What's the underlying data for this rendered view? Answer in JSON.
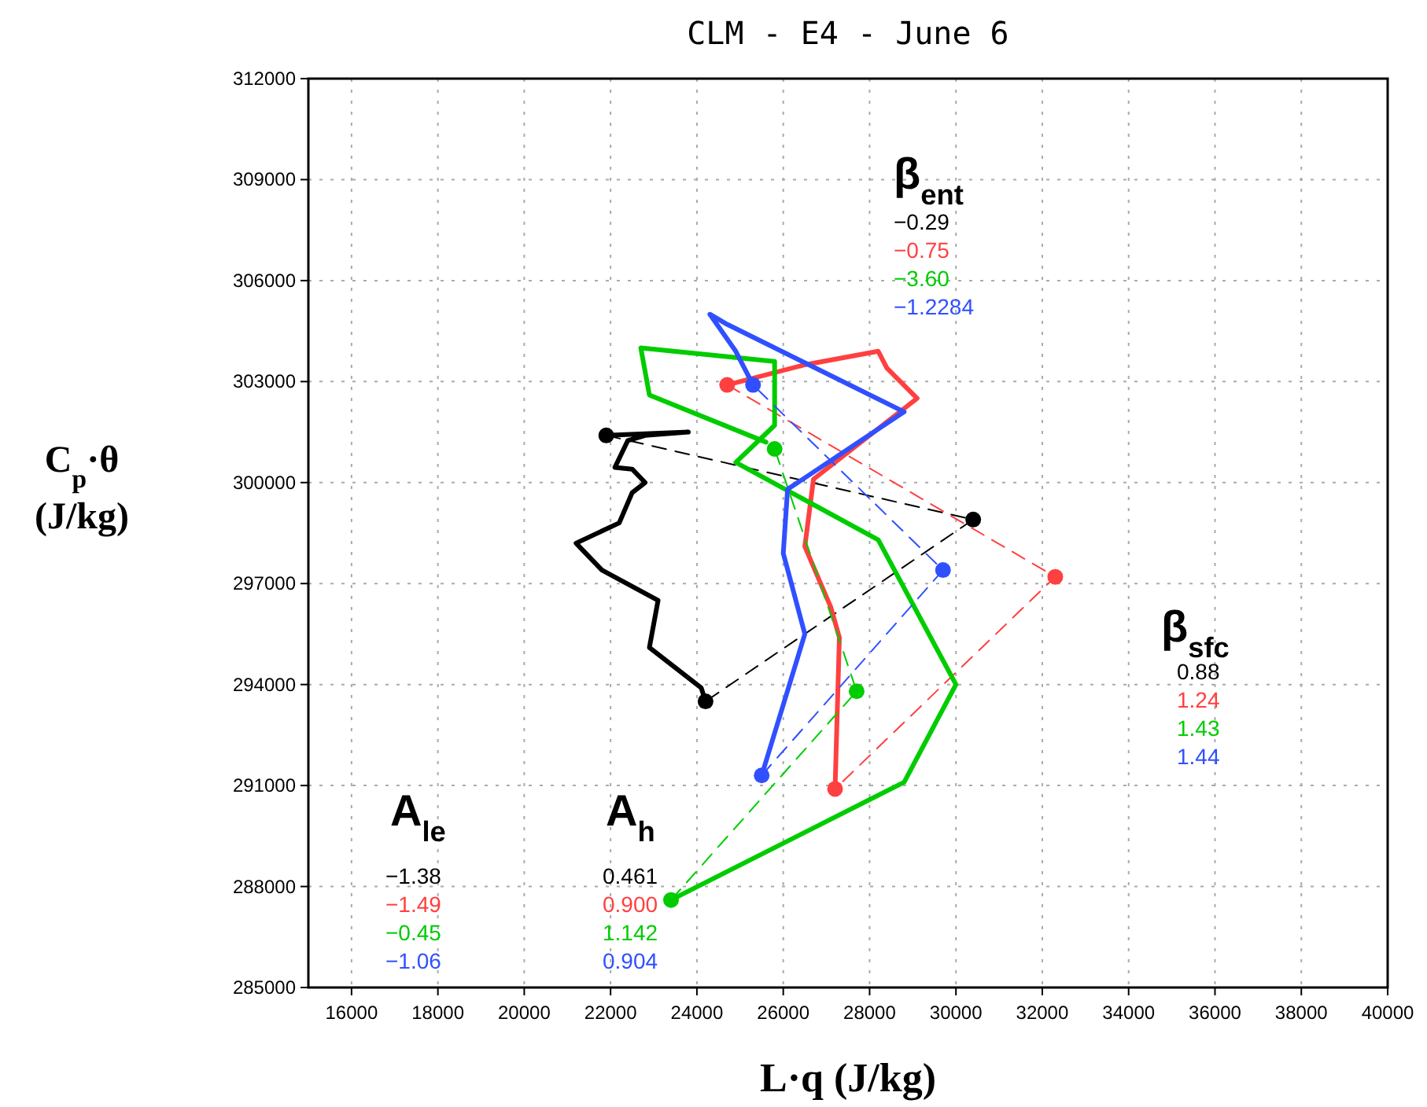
{
  "chart_data": {
    "type": "line",
    "title": "CLM - E4 - June 6",
    "xlabel": "L·q (J/kg)",
    "ylabel": "C$_{p}$·θ (J/kg)",
    "xlim": [
      15000,
      40000
    ],
    "xticks": [
      16000,
      18000,
      20000,
      22000,
      24000,
      26000,
      28000,
      30000,
      32000,
      34000,
      36000,
      38000,
      40000
    ],
    "ylim": [
      285000,
      312000
    ],
    "yticks": [
      285000,
      288000,
      291000,
      294000,
      297000,
      300000,
      303000,
      306000,
      309000,
      312000
    ],
    "grid": true,
    "series": [
      {
        "color": "#000000",
        "marker": "circle",
        "line_style": "dashed",
        "x": [
          21900,
          30400,
          24200
        ],
        "values": [
          301400,
          298900,
          293500
        ]
      },
      {
        "color": "#000000",
        "marker": "none",
        "line_style": "solid",
        "x": [
          21900,
          23800,
          22800,
          22400,
          22100,
          22500,
          22800,
          22500,
          22200,
          21200,
          21800,
          23100,
          22900,
          24100,
          24200
        ],
        "values": [
          301400,
          301500,
          301400,
          301250,
          300450,
          300400,
          300000,
          299700,
          298800,
          298200,
          297400,
          296500,
          295100,
          293900,
          293500
        ]
      },
      {
        "color": "#ff4040",
        "marker": "circle",
        "line_style": "dashed",
        "x": [
          24700,
          32300,
          27200
        ],
        "values": [
          302900,
          297200,
          290900
        ]
      },
      {
        "color": "#ff4040",
        "marker": "none",
        "line_style": "solid",
        "x": [
          24700,
          26500,
          28200,
          28400,
          29100,
          26700,
          26500,
          27100,
          27300,
          27200
        ],
        "values": [
          302900,
          303500,
          303900,
          303400,
          302500,
          300100,
          298100,
          296300,
          295400,
          290900
        ]
      },
      {
        "color": "#00cc00",
        "marker": "circle",
        "line_style": "dashed",
        "x": [
          23400,
          27700,
          25800
        ],
        "values": [
          287600,
          293800,
          301000
        ]
      },
      {
        "color": "#00cc00",
        "marker": "none",
        "line_style": "solid",
        "x": [
          25600,
          22900,
          22700,
          25800,
          25800,
          24900,
          28200,
          30000,
          28800,
          23400
        ],
        "values": [
          301200,
          302600,
          304000,
          303600,
          301700,
          300600,
          298300,
          294000,
          291100,
          287600
        ]
      },
      {
        "color": "#3050ff",
        "marker": "circle",
        "line_style": "dashed",
        "x": [
          25500,
          29700,
          25300
        ],
        "values": [
          291300,
          297400,
          302900
        ]
      },
      {
        "color": "#3050ff",
        "marker": "none",
        "line_style": "solid",
        "x": [
          25300,
          24900,
          24300,
          24700,
          28800,
          26100,
          26000,
          26500,
          25500
        ],
        "values": [
          302900,
          303900,
          305000,
          304700,
          302100,
          299800,
          297900,
          295500,
          291300
        ]
      }
    ],
    "annotations": [
      "β$_{ent}$",
      "−0.29",
      "−0.75",
      "−3.60",
      "−1.2284",
      "β$_{sfc}$",
      "0.88",
      "1.24",
      "1.43",
      "1.44",
      "A$_{le}$",
      "−1.38",
      "−1.49",
      "−0.45",
      "−1.06",
      "A$_{h}$",
      "0.461",
      "0.900",
      "1.142",
      "0.904"
    ]
  }
}
